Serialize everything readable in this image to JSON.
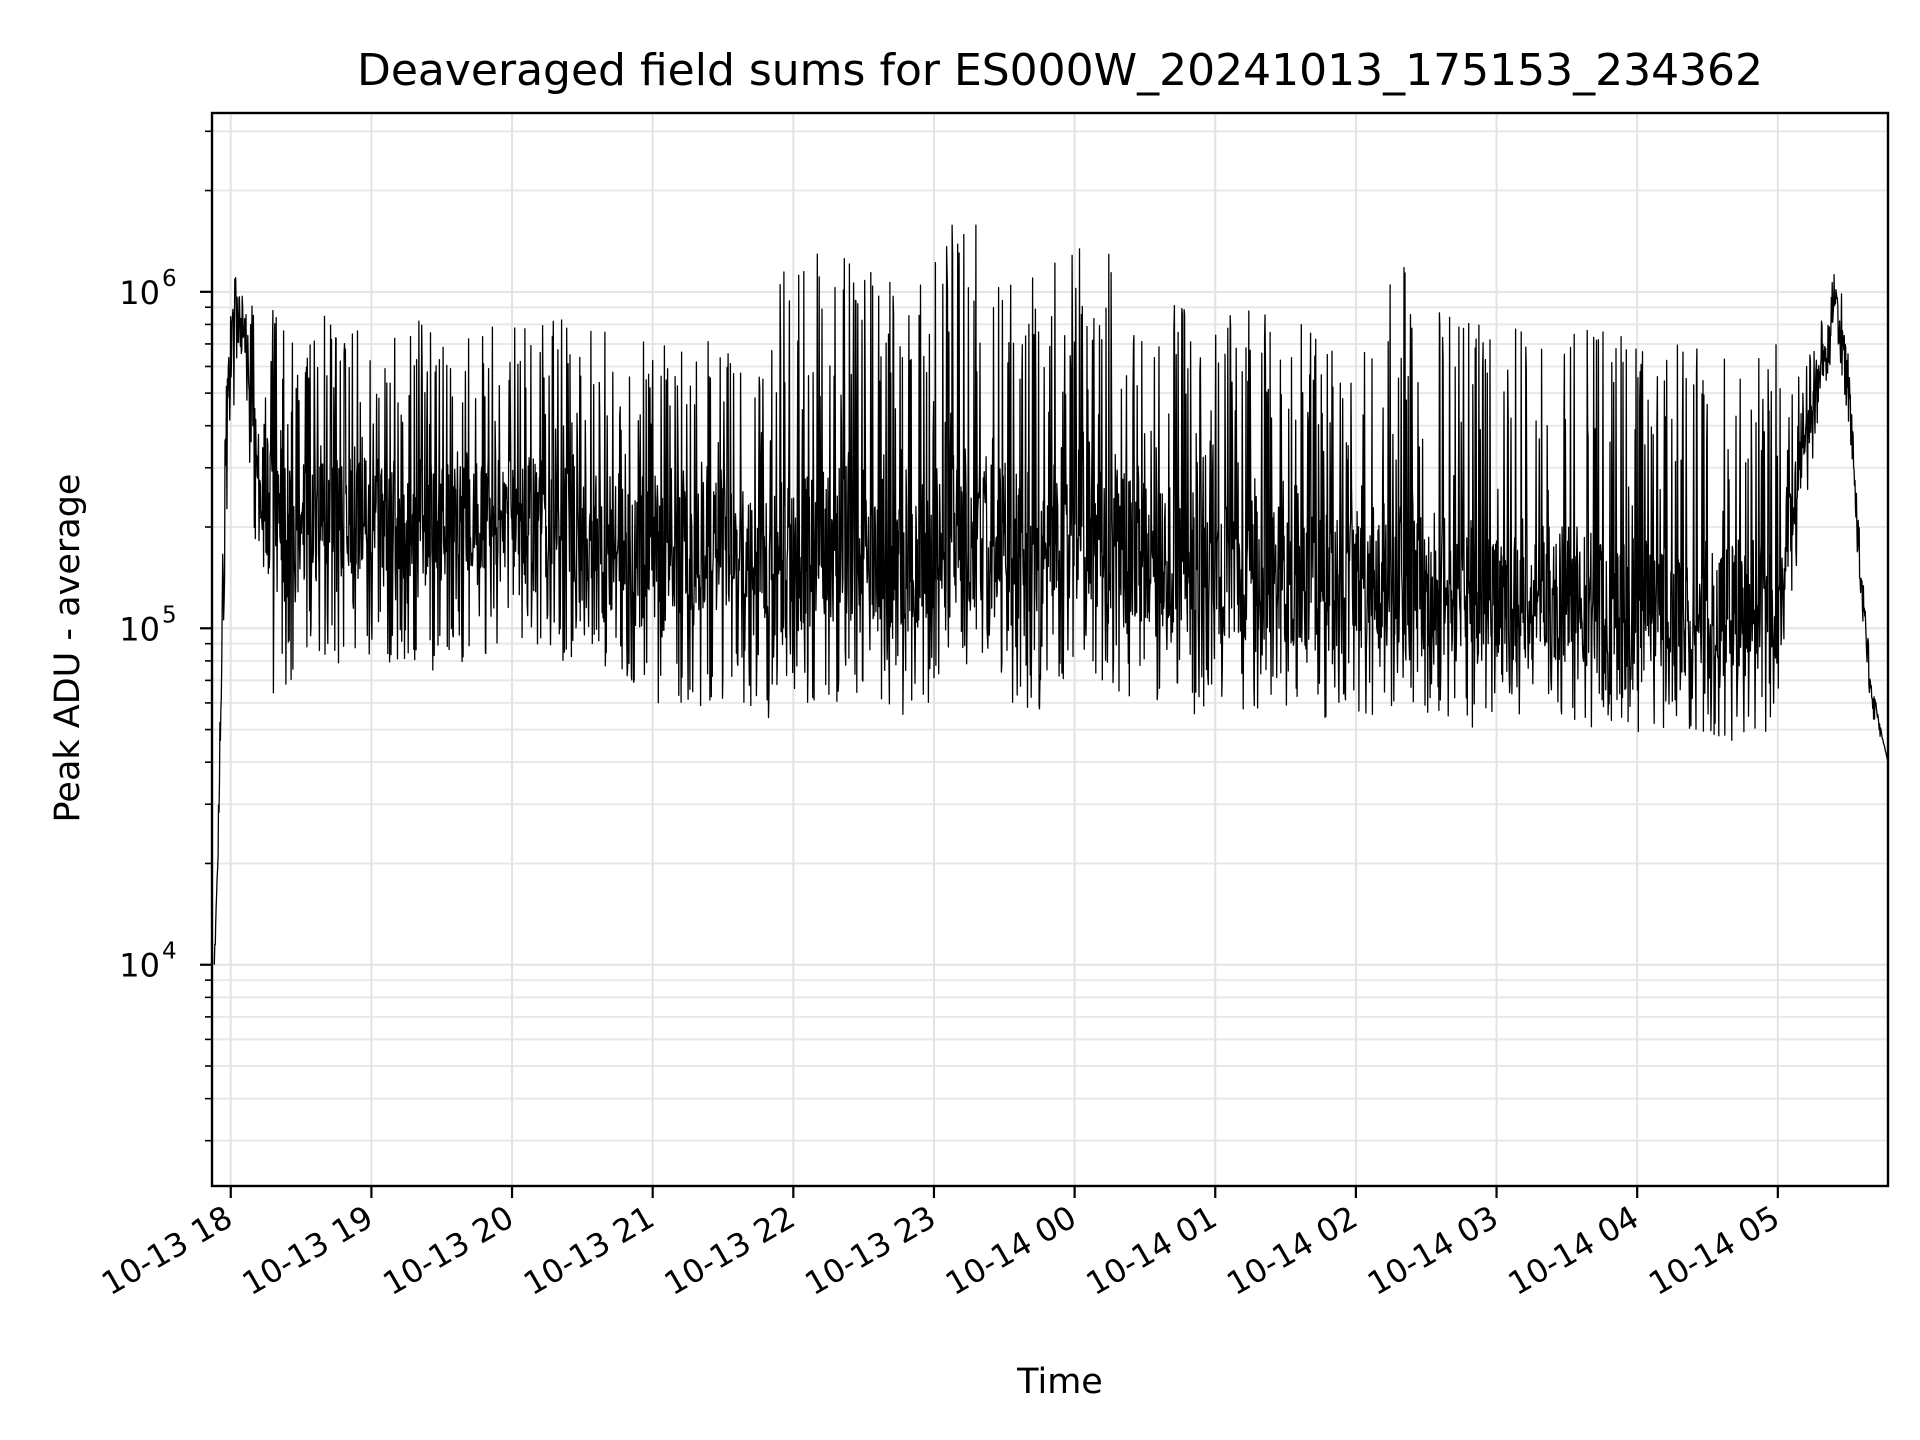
{
  "chart_data": {
    "type": "line",
    "title": "Deaveraged field sums for ES000W_20241013_175153_234362",
    "xlabel": "Time",
    "ylabel": "Peak ADU - average",
    "yscale": "log",
    "ylim": [
      2200,
      3400000
    ],
    "xlim": [
      "2024-10-13 17:52",
      "2024-10-14 05:47"
    ],
    "grid": true,
    "legend": "none",
    "line_color": "#000000",
    "x_tick_labels": [
      "10-13 18",
      "10-13 19",
      "10-13 20",
      "10-13 21",
      "10-13 22",
      "10-13 23",
      "10-14 00",
      "10-14 01",
      "10-14 02",
      "10-14 03",
      "10-14 04",
      "10-14 05"
    ],
    "x_tick_values": [
      "2024-10-13 18:00",
      "2024-10-13 19:00",
      "2024-10-13 20:00",
      "2024-10-13 21:00",
      "2024-10-13 22:00",
      "2024-10-13 23:00",
      "2024-10-14 00:00",
      "2024-10-14 01:00",
      "2024-10-14 02:00",
      "2024-10-14 03:00",
      "2024-10-14 04:00",
      "2024-10-14 05:00"
    ],
    "y_ticks": [
      {
        "value": 10000,
        "base": "10",
        "exp": "4"
      },
      {
        "value": 100000,
        "base": "10",
        "exp": "5"
      },
      {
        "value": 1000000,
        "base": "10",
        "exp": "6"
      }
    ],
    "series": [
      {
        "x": [
          "2024-10-13 17:53",
          "2024-10-13 17:55",
          "2024-10-13 17:58",
          "2024-10-13 18:03",
          "2024-10-13 18:08",
          "2024-10-13 18:13",
          "2024-10-13 18:18",
          "2024-10-13 18:22",
          "2024-10-13 18:27",
          "2024-10-13 18:30",
          "2024-10-13 18:35",
          "2024-10-13 18:40",
          "2024-10-13 18:50",
          "2024-10-13 19:00",
          "2024-10-13 19:10",
          "2024-10-13 19:20",
          "2024-10-13 19:30",
          "2024-10-13 19:45",
          "2024-10-13 20:00",
          "2024-10-13 20:15",
          "2024-10-13 20:30",
          "2024-10-13 20:45",
          "2024-10-13 21:00",
          "2024-10-13 21:15",
          "2024-10-13 21:30",
          "2024-10-13 21:45",
          "2024-10-13 21:57",
          "2024-10-13 22:05",
          "2024-10-13 22:20",
          "2024-10-13 22:35",
          "2024-10-13 22:50",
          "2024-10-13 23:05",
          "2024-10-13 23:15",
          "2024-10-13 23:30",
          "2024-10-13 23:45",
          "2024-10-14 00:00",
          "2024-10-14 00:15",
          "2024-10-14 00:30",
          "2024-10-14 00:45",
          "2024-10-14 01:00",
          "2024-10-14 01:15",
          "2024-10-14 01:30",
          "2024-10-14 01:45",
          "2024-10-14 02:00",
          "2024-10-14 02:10",
          "2024-10-14 02:20",
          "2024-10-14 02:35",
          "2024-10-14 02:50",
          "2024-10-14 03:05",
          "2024-10-14 03:20",
          "2024-10-14 03:35",
          "2024-10-14 03:50",
          "2024-10-14 04:05",
          "2024-10-14 04:20",
          "2024-10-14 04:35",
          "2024-10-14 04:50",
          "2024-10-14 05:00",
          "2024-10-14 05:05",
          "2024-10-14 05:10",
          "2024-10-14 05:15",
          "2024-10-14 05:20",
          "2024-10-14 05:25",
          "2024-10-14 05:30",
          "2024-10-14 05:35",
          "2024-10-14 05:40",
          "2024-10-14 05:47"
        ],
        "low": [
          10000,
          20000,
          200000,
          700000,
          300000,
          100000,
          60000,
          60000,
          70000,
          80000,
          70000,
          70000,
          80000,
          75000,
          80000,
          80000,
          70000,
          80000,
          90000,
          80000,
          80000,
          75000,
          60000,
          55000,
          60000,
          55000,
          50000,
          60000,
          60000,
          55000,
          50000,
          70000,
          70000,
          60000,
          55000,
          70000,
          65000,
          60000,
          55000,
          55000,
          55000,
          55000,
          50000,
          55000,
          55000,
          55000,
          55000,
          50000,
          50000,
          55000,
          50000,
          50000,
          45000,
          45000,
          45000,
          45000,
          50000,
          100000,
          200000,
          300000,
          500000,
          700000,
          400000,
          100000,
          55000,
          40000
        ],
        "mid": [
          10000,
          30000,
          450000,
          1100000,
          550000,
          300000,
          200000,
          180000,
          200000,
          210000,
          210000,
          200000,
          220000,
          210000,
          220000,
          220000,
          200000,
          210000,
          230000,
          210000,
          200000,
          200000,
          180000,
          170000,
          180000,
          170000,
          160000,
          170000,
          180000,
          170000,
          150000,
          200000,
          200000,
          180000,
          170000,
          210000,
          190000,
          170000,
          160000,
          150000,
          150000,
          140000,
          130000,
          140000,
          140000,
          140000,
          135000,
          130000,
          125000,
          130000,
          125000,
          120000,
          115000,
          115000,
          115000,
          115000,
          120000,
          200000,
          350000,
          450000,
          650000,
          1000000,
          600000,
          150000,
          65000,
          40000
        ],
        "high": [
          10000,
          50000,
          700000,
          1300000,
          900000,
          1000000,
          900000,
          850000,
          800000,
          800000,
          800000,
          850000,
          800000,
          820000,
          800000,
          850000,
          800000,
          800000,
          820000,
          850000,
          800000,
          800000,
          700000,
          700000,
          720000,
          700000,
          1200000,
          1500000,
          1300000,
          1200000,
          900000,
          1600000,
          1800000,
          1200000,
          1100000,
          1500000,
          1300000,
          1000000,
          900000,
          850000,
          900000,
          850000,
          800000,
          800000,
          1000000,
          1200000,
          900000,
          800000,
          800000,
          750000,
          800000,
          750000,
          700000,
          700000,
          700000,
          700000,
          750000,
          500000,
          600000,
          700000,
          900000,
          1200000,
          800000,
          200000,
          70000,
          40000
        ]
      }
    ]
  }
}
